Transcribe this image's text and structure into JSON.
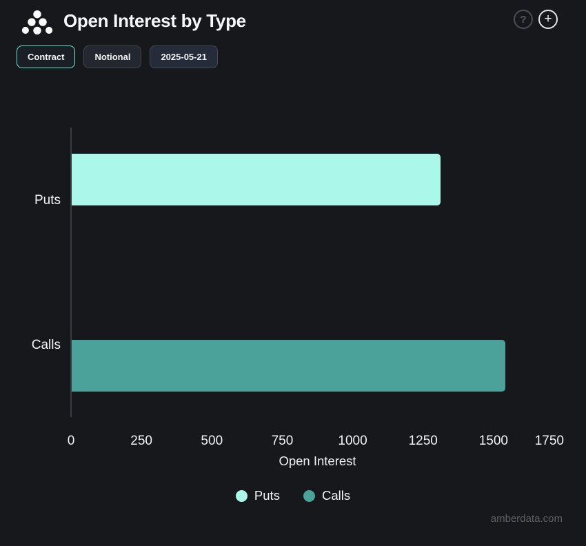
{
  "header": {
    "title": "Open Interest by Type",
    "logo": "amberdata-logo",
    "help_label": "?",
    "add_label": "+"
  },
  "toolbar": {
    "buttons": [
      {
        "label": "Contract",
        "selected": true
      },
      {
        "label": "Notional",
        "selected": false
      },
      {
        "label": "2025-05-21",
        "selected": false
      }
    ]
  },
  "chart_data": {
    "type": "bar",
    "orientation": "horizontal",
    "title": "Open Interest by Type",
    "categories": [
      "Puts",
      "Calls"
    ],
    "values": [
      1310,
      1540
    ],
    "colors": [
      "#ABF8EB",
      "#4AA29B"
    ],
    "xlabel": "Open Interest",
    "ylabel": "",
    "xlim": [
      0,
      1750
    ],
    "x_ticks": [
      0,
      250,
      500,
      750,
      1000,
      1250,
      1500,
      1750
    ],
    "grid": false,
    "legend_position": "bottom",
    "legend": [
      {
        "label": "Puts",
        "color": "#ABF8EB"
      },
      {
        "label": "Calls",
        "color": "#4AA29B"
      }
    ]
  },
  "footer": {
    "watermark": "amberdata.com"
  },
  "colors": {
    "background": "#16181C",
    "accent": "#6EE9D1",
    "axis_line": "#3A3E44",
    "puts": "#ABF8EB",
    "calls": "#4AA29B"
  }
}
